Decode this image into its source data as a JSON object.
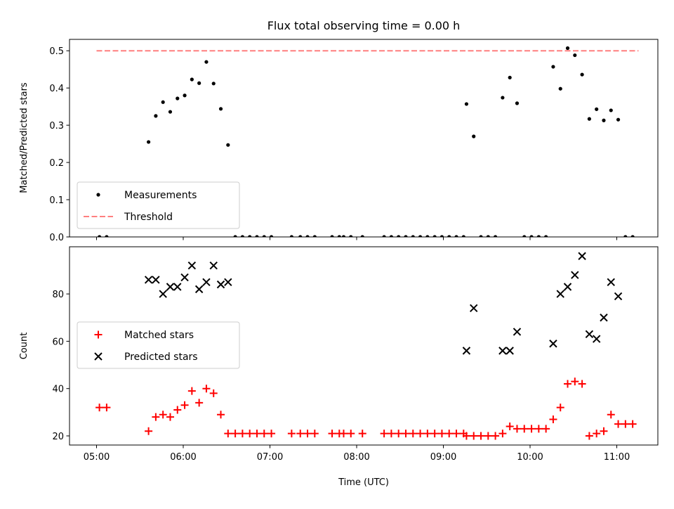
{
  "chart_data": {
    "type": "scatter",
    "title": "Flux total observing time = 0.00 h",
    "xlabel": "Time (UTC)",
    "x_ticks": [
      "05:00",
      "06:00",
      "07:00",
      "08:00",
      "09:00",
      "10:00",
      "11:00"
    ],
    "panels": [
      {
        "ylabel": "Matched/Predicted stars",
        "ylim": [
          0,
          0.52
        ],
        "y_ticks": [
          "0.0",
          "0.1",
          "0.2",
          "0.3",
          "0.4",
          "0.5"
        ],
        "legend_placement": "lower-left",
        "series": [
          {
            "name": "Measurements",
            "marker": "dot",
            "color": "#000000",
            "points": [
              [
                "05:02",
                0
              ],
              [
                "05:07",
                0
              ],
              [
                "05:36",
                0.255
              ],
              [
                "05:41",
                0.325
              ],
              [
                "05:46",
                0.362
              ],
              [
                "05:51",
                0.336
              ],
              [
                "05:56",
                0.372
              ],
              [
                "06:01",
                0.38
              ],
              [
                "06:06",
                0.423
              ],
              [
                "06:11",
                0.413
              ],
              [
                "06:16",
                0.47
              ],
              [
                "06:21",
                0.412
              ],
              [
                "06:26",
                0.344
              ],
              [
                "06:31",
                0.247
              ],
              [
                "06:36",
                0
              ],
              [
                "06:41",
                0
              ],
              [
                "06:46",
                0
              ],
              [
                "06:51",
                0
              ],
              [
                "06:56",
                0
              ],
              [
                "07:01",
                0
              ],
              [
                "07:15",
                0
              ],
              [
                "07:21",
                0
              ],
              [
                "07:26",
                0
              ],
              [
                "07:31",
                0
              ],
              [
                "07:43",
                0
              ],
              [
                "07:48",
                0
              ],
              [
                "07:51",
                0
              ],
              [
                "07:56",
                0
              ],
              [
                "08:04",
                0
              ],
              [
                "08:19",
                0
              ],
              [
                "08:24",
                0
              ],
              [
                "08:29",
                0
              ],
              [
                "08:34",
                0
              ],
              [
                "08:39",
                0
              ],
              [
                "08:44",
                0
              ],
              [
                "08:49",
                0
              ],
              [
                "08:54",
                0
              ],
              [
                "08:59",
                0
              ],
              [
                "09:04",
                0
              ],
              [
                "09:09",
                0
              ],
              [
                "09:14",
                0
              ],
              [
                "09:16",
                0.357
              ],
              [
                "09:21",
                0.27
              ],
              [
                "09:26",
                0
              ],
              [
                "09:31",
                0
              ],
              [
                "09:36",
                0
              ],
              [
                "09:41",
                0.374
              ],
              [
                "09:46",
                0.428
              ],
              [
                "09:51",
                0.359
              ],
              [
                "09:56",
                0
              ],
              [
                "10:01",
                0
              ],
              [
                "10:06",
                0
              ],
              [
                "10:11",
                0
              ],
              [
                "10:16",
                0.457
              ],
              [
                "10:21",
                0.398
              ],
              [
                "10:26",
                0.507
              ],
              [
                "10:31",
                0.488
              ],
              [
                "10:36",
                0.436
              ],
              [
                "10:41",
                0.317
              ],
              [
                "10:46",
                0.343
              ],
              [
                "10:51",
                0.313
              ],
              [
                "10:56",
                0.34
              ],
              [
                "11:01",
                0.315
              ],
              [
                "11:06",
                0
              ],
              [
                "11:11",
                0
              ]
            ]
          },
          {
            "name": "Threshold",
            "marker": "dashed-line",
            "color": "#ff7f7f",
            "points": [
              [
                "05:00",
                0.5
              ],
              [
                "11:15",
                0.5
              ]
            ]
          }
        ]
      },
      {
        "ylabel": "Count",
        "ylim": [
          16,
          98
        ],
        "y_ticks": [
          "20",
          "40",
          "60",
          "80"
        ],
        "legend_placement": "center-left",
        "series": [
          {
            "name": "Matched stars",
            "marker": "plus",
            "color": "#ff0000",
            "points": [
              [
                "05:02",
                32
              ],
              [
                "05:07",
                32
              ],
              [
                "05:36",
                22
              ],
              [
                "05:41",
                28
              ],
              [
                "05:46",
                29
              ],
              [
                "05:51",
                28
              ],
              [
                "05:56",
                31
              ],
              [
                "06:01",
                33
              ],
              [
                "06:06",
                39
              ],
              [
                "06:11",
                34
              ],
              [
                "06:16",
                40
              ],
              [
                "06:21",
                38
              ],
              [
                "06:26",
                29
              ],
              [
                "06:31",
                21
              ],
              [
                "06:36",
                21
              ],
              [
                "06:41",
                21
              ],
              [
                "06:46",
                21
              ],
              [
                "06:51",
                21
              ],
              [
                "06:56",
                21
              ],
              [
                "07:01",
                21
              ],
              [
                "07:15",
                21
              ],
              [
                "07:21",
                21
              ],
              [
                "07:26",
                21
              ],
              [
                "07:31",
                21
              ],
              [
                "07:43",
                21
              ],
              [
                "07:48",
                21
              ],
              [
                "07:51",
                21
              ],
              [
                "07:56",
                21
              ],
              [
                "08:04",
                21
              ],
              [
                "08:19",
                21
              ],
              [
                "08:24",
                21
              ],
              [
                "08:29",
                21
              ],
              [
                "08:34",
                21
              ],
              [
                "08:39",
                21
              ],
              [
                "08:44",
                21
              ],
              [
                "08:49",
                21
              ],
              [
                "08:54",
                21
              ],
              [
                "08:59",
                21
              ],
              [
                "09:04",
                21
              ],
              [
                "09:09",
                21
              ],
              [
                "09:14",
                21
              ],
              [
                "09:16",
                20
              ],
              [
                "09:21",
                20
              ],
              [
                "09:26",
                20
              ],
              [
                "09:31",
                20
              ],
              [
                "09:36",
                20
              ],
              [
                "09:41",
                21
              ],
              [
                "09:46",
                24
              ],
              [
                "09:51",
                23
              ],
              [
                "09:56",
                23
              ],
              [
                "10:01",
                23
              ],
              [
                "10:06",
                23
              ],
              [
                "10:11",
                23
              ],
              [
                "10:16",
                27
              ],
              [
                "10:21",
                32
              ],
              [
                "10:26",
                42
              ],
              [
                "10:31",
                43
              ],
              [
                "10:36",
                42
              ],
              [
                "10:41",
                20
              ],
              [
                "10:46",
                21
              ],
              [
                "10:51",
                22
              ],
              [
                "10:56",
                29
              ],
              [
                "11:01",
                25
              ],
              [
                "11:06",
                25
              ],
              [
                "11:11",
                25
              ]
            ]
          },
          {
            "name": "Predicted stars",
            "marker": "x",
            "color": "#000000",
            "points": [
              [
                "05:36",
                86
              ],
              [
                "05:41",
                86
              ],
              [
                "05:46",
                80
              ],
              [
                "05:51",
                83
              ],
              [
                "05:56",
                83
              ],
              [
                "06:01",
                87
              ],
              [
                "06:06",
                92
              ],
              [
                "06:11",
                82
              ],
              [
                "06:16",
                85
              ],
              [
                "06:21",
                92
              ],
              [
                "06:26",
                84
              ],
              [
                "06:31",
                85
              ],
              [
                "09:16",
                56
              ],
              [
                "09:21",
                74
              ],
              [
                "09:41",
                56
              ],
              [
                "09:46",
                56
              ],
              [
                "09:51",
                64
              ],
              [
                "10:16",
                59
              ],
              [
                "10:21",
                80
              ],
              [
                "10:26",
                83
              ],
              [
                "10:31",
                88
              ],
              [
                "10:36",
                96
              ],
              [
                "10:41",
                63
              ],
              [
                "10:46",
                61
              ],
              [
                "10:51",
                70
              ],
              [
                "10:56",
                85
              ],
              [
                "11:01",
                79
              ]
            ]
          }
        ]
      }
    ]
  }
}
